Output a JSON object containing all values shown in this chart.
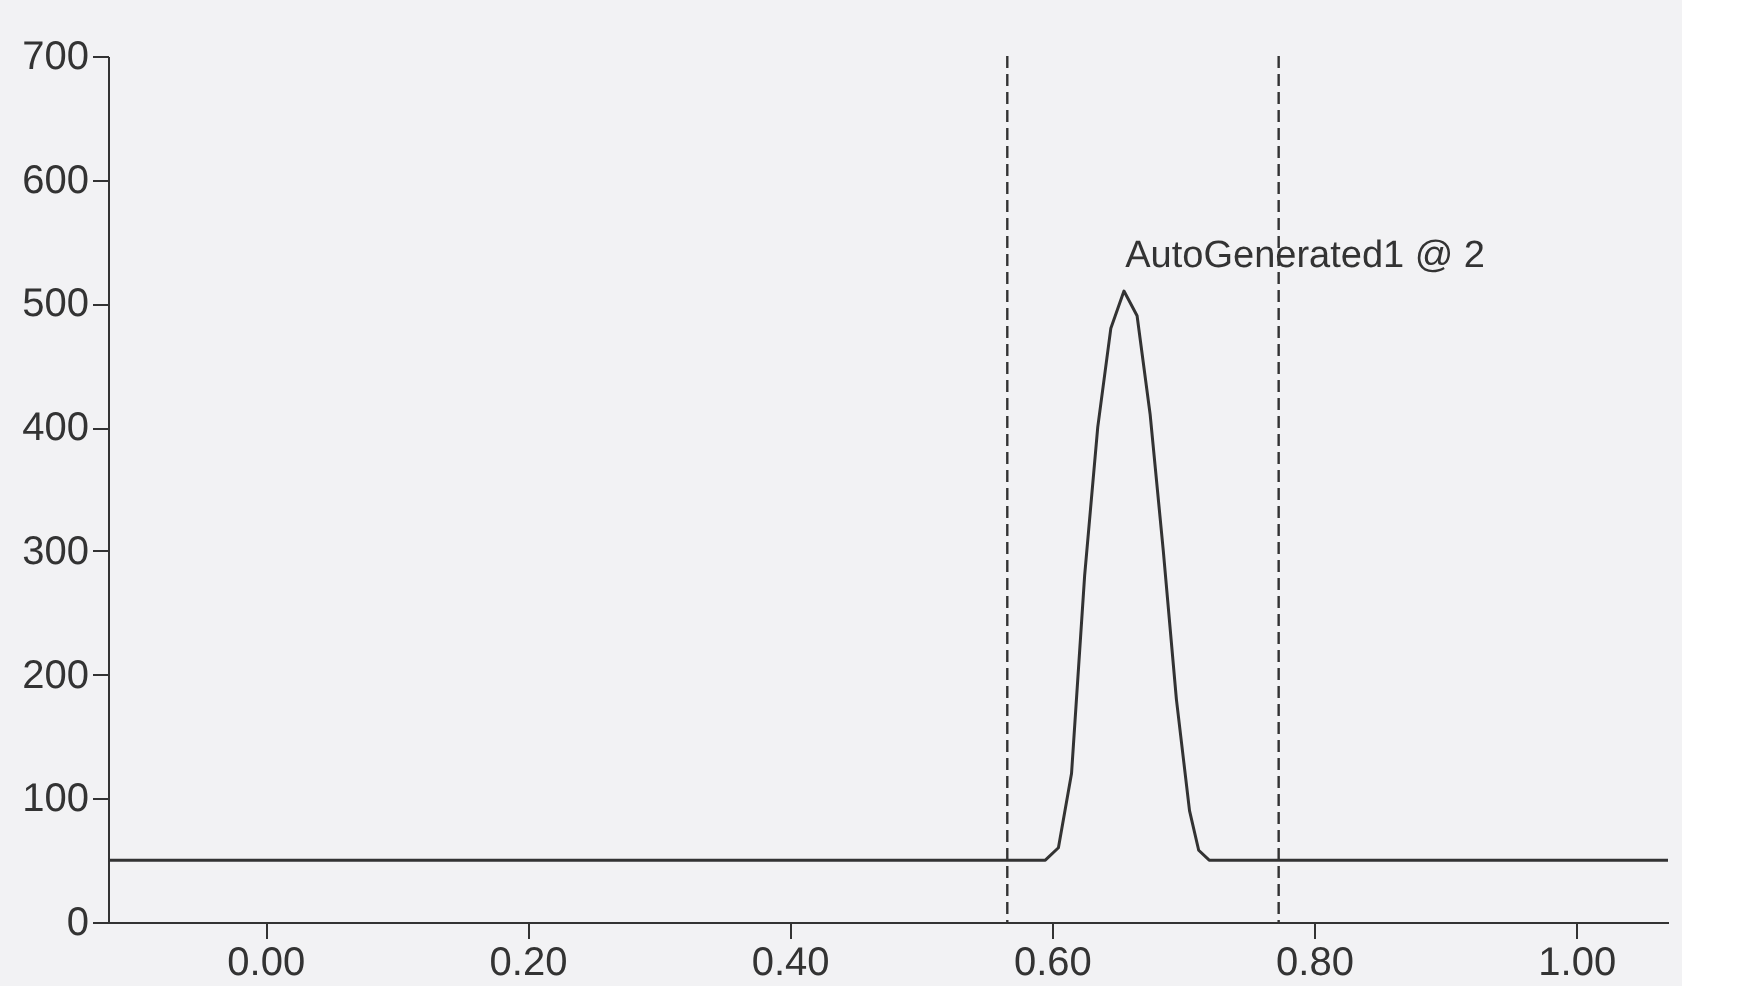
{
  "chart_data": {
    "type": "line",
    "x": [
      -0.12,
      0.595,
      0.605,
      0.615,
      0.625,
      0.635,
      0.645,
      0.655,
      0.665,
      0.675,
      0.685,
      0.695,
      0.705,
      0.712,
      0.72,
      1.07
    ],
    "series": [
      {
        "color": "#333333",
        "values": [
          50,
          50,
          60,
          120,
          280,
          400,
          480,
          510,
          490,
          410,
          300,
          180,
          90,
          58,
          50,
          50
        ]
      }
    ],
    "xlim": [
      -0.12,
      1.07
    ],
    "ylim": [
      0,
      700
    ],
    "xticks": [
      {
        "value": 0,
        "label": "0.00"
      },
      {
        "value": 0.2,
        "label": "0.20"
      },
      {
        "value": 0.4,
        "label": "0.40"
      },
      {
        "value": 0.6,
        "label": "0.60"
      },
      {
        "value": 0.8,
        "label": "0.80"
      },
      {
        "value": 1.0,
        "label": "1.00"
      }
    ],
    "yticks": [
      0,
      100,
      200,
      300,
      400,
      500,
      600,
      700
    ],
    "ref_lines": [
      {
        "axis": "x",
        "value": 0.566,
        "line_style": "dashed",
        "color": "#333333"
      },
      {
        "axis": "x",
        "value": 0.773,
        "line_style": "dashed",
        "color": "#333333"
      }
    ],
    "annotations": [
      {
        "text": "AutoGenerated1 @ 2",
        "x": 0.656,
        "y": 510
      }
    ],
    "grid": false,
    "marker": "none",
    "line_style": "solid"
  }
}
